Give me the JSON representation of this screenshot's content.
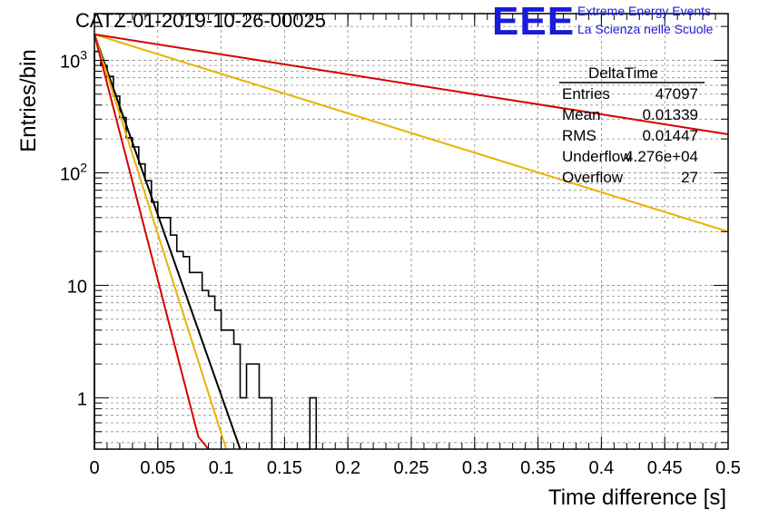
{
  "title": "CATZ-01-2019-10-26-00025",
  "logo": {
    "mark": "EEE",
    "line1": "Extreme Energy Events",
    "line2": "La Scienza nelle Scuole",
    "color": "#1a1adb"
  },
  "stats": {
    "name": "DeltaTime",
    "rows": [
      {
        "label": "Entries",
        "value": "47097"
      },
      {
        "label": "Mean",
        "value": "0.01339"
      },
      {
        "label": "RMS",
        "value": "0.01447"
      },
      {
        "label": "Underflow",
        "value": "4.276e+04"
      },
      {
        "label": "Overflow",
        "value": "27"
      }
    ]
  },
  "chart_data": {
    "type": "histogram",
    "title": "CATZ-01-2019-10-26-00025",
    "xlabel": "Time difference [s]",
    "ylabel": "Entries/bin",
    "xlim": [
      0,
      0.5
    ],
    "ylim": [
      0.35,
      2600
    ],
    "log_y": true,
    "grid": true,
    "x_ticks": [
      "0",
      "0.05",
      "0.1",
      "0.15",
      "0.2",
      "0.25",
      "0.3",
      "0.35",
      "0.4",
      "0.45",
      "0.5"
    ],
    "y_ticks": [
      {
        "value": 1,
        "label": "1"
      },
      {
        "value": 10,
        "label": "10"
      },
      {
        "value": 100,
        "label": "10^2"
      },
      {
        "value": 1000,
        "label": "10^3"
      }
    ],
    "bin_width": 0.005,
    "bins": [
      {
        "x": 0.0,
        "y": 1200
      },
      {
        "x": 0.005,
        "y": 900
      },
      {
        "x": 0.01,
        "y": 720
      },
      {
        "x": 0.015,
        "y": 480
      },
      {
        "x": 0.02,
        "y": 310
      },
      {
        "x": 0.025,
        "y": 205
      },
      {
        "x": 0.03,
        "y": 170
      },
      {
        "x": 0.035,
        "y": 120
      },
      {
        "x": 0.04,
        "y": 85
      },
      {
        "x": 0.045,
        "y": 55
      },
      {
        "x": 0.05,
        "y": 40
      },
      {
        "x": 0.055,
        "y": 40
      },
      {
        "x": 0.06,
        "y": 28
      },
      {
        "x": 0.065,
        "y": 20
      },
      {
        "x": 0.07,
        "y": 18
      },
      {
        "x": 0.075,
        "y": 13
      },
      {
        "x": 0.08,
        "y": 13
      },
      {
        "x": 0.085,
        "y": 9
      },
      {
        "x": 0.09,
        "y": 8
      },
      {
        "x": 0.095,
        "y": 6
      },
      {
        "x": 0.1,
        "y": 4
      },
      {
        "x": 0.105,
        "y": 4
      },
      {
        "x": 0.11,
        "y": 3
      },
      {
        "x": 0.115,
        "y": 1
      },
      {
        "x": 0.12,
        "y": 2
      },
      {
        "x": 0.125,
        "y": 2
      },
      {
        "x": 0.13,
        "y": 1
      },
      {
        "x": 0.135,
        "y": 1
      },
      {
        "x": 0.14,
        "y": 0
      },
      {
        "x": 0.145,
        "y": 0
      },
      {
        "x": 0.15,
        "y": 0
      },
      {
        "x": 0.155,
        "y": 0
      },
      {
        "x": 0.16,
        "y": 0
      },
      {
        "x": 0.165,
        "y": 0
      },
      {
        "x": 0.17,
        "y": 1
      }
    ],
    "series": [
      {
        "color": "#000000",
        "x": [
          0.0,
          0.115
        ],
        "y": [
          1700,
          0.35
        ]
      },
      {
        "color": "#e6b400",
        "x": [
          0.0,
          0.5
        ],
        "y": [
          1700,
          30
        ]
      },
      {
        "color": "#e6b400",
        "x": [
          0.0,
          0.104
        ],
        "y": [
          1700,
          0.35
        ]
      },
      {
        "color": "#d40000",
        "x": [
          0.0,
          0.5
        ],
        "y": [
          1700,
          220
        ]
      },
      {
        "color": "#d40000",
        "x": [
          0.0,
          0.082,
          0.09
        ],
        "y": [
          1700,
          0.45,
          0.3
        ]
      }
    ]
  }
}
